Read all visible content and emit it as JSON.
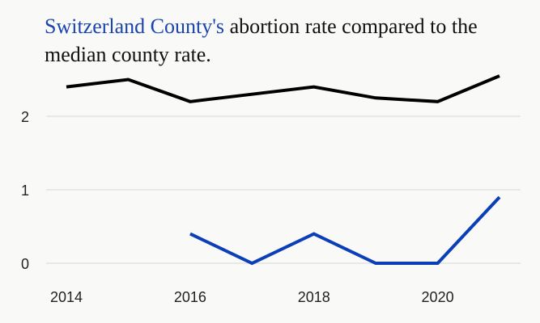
{
  "title": {
    "highlight": "Switzerland County's",
    "rest": " abortion rate compared to the median county rate."
  },
  "colors": {
    "background": "#f9f9f7",
    "gridline": "#d8d8d8",
    "county_line": "#0a3fb8",
    "median_line": "#000000",
    "highlight_text": "#1a44b0"
  },
  "chart_data": {
    "type": "line",
    "title": "Switzerland County's abortion rate compared to the median county rate.",
    "xlabel": "",
    "ylabel": "",
    "x_ticks": [
      2014,
      2016,
      2018,
      2020
    ],
    "y_ticks": [
      0,
      1,
      2
    ],
    "xlim": [
      2014,
      2021
    ],
    "ylim": [
      0,
      2.6
    ],
    "grid": "horizontal",
    "legend": "none",
    "series": [
      {
        "key": "median",
        "x": [
          2014,
          2015,
          2016,
          2017,
          2018,
          2019,
          2020,
          2021
        ],
        "values": [
          2.4,
          2.5,
          2.2,
          2.3,
          2.4,
          2.25,
          2.2,
          2.55
        ]
      },
      {
        "key": "county",
        "x": [
          2016,
          2017,
          2018,
          2019,
          2020,
          2021
        ],
        "values": [
          0.4,
          0.0,
          0.4,
          0.0,
          0.0,
          0.9
        ]
      }
    ]
  }
}
